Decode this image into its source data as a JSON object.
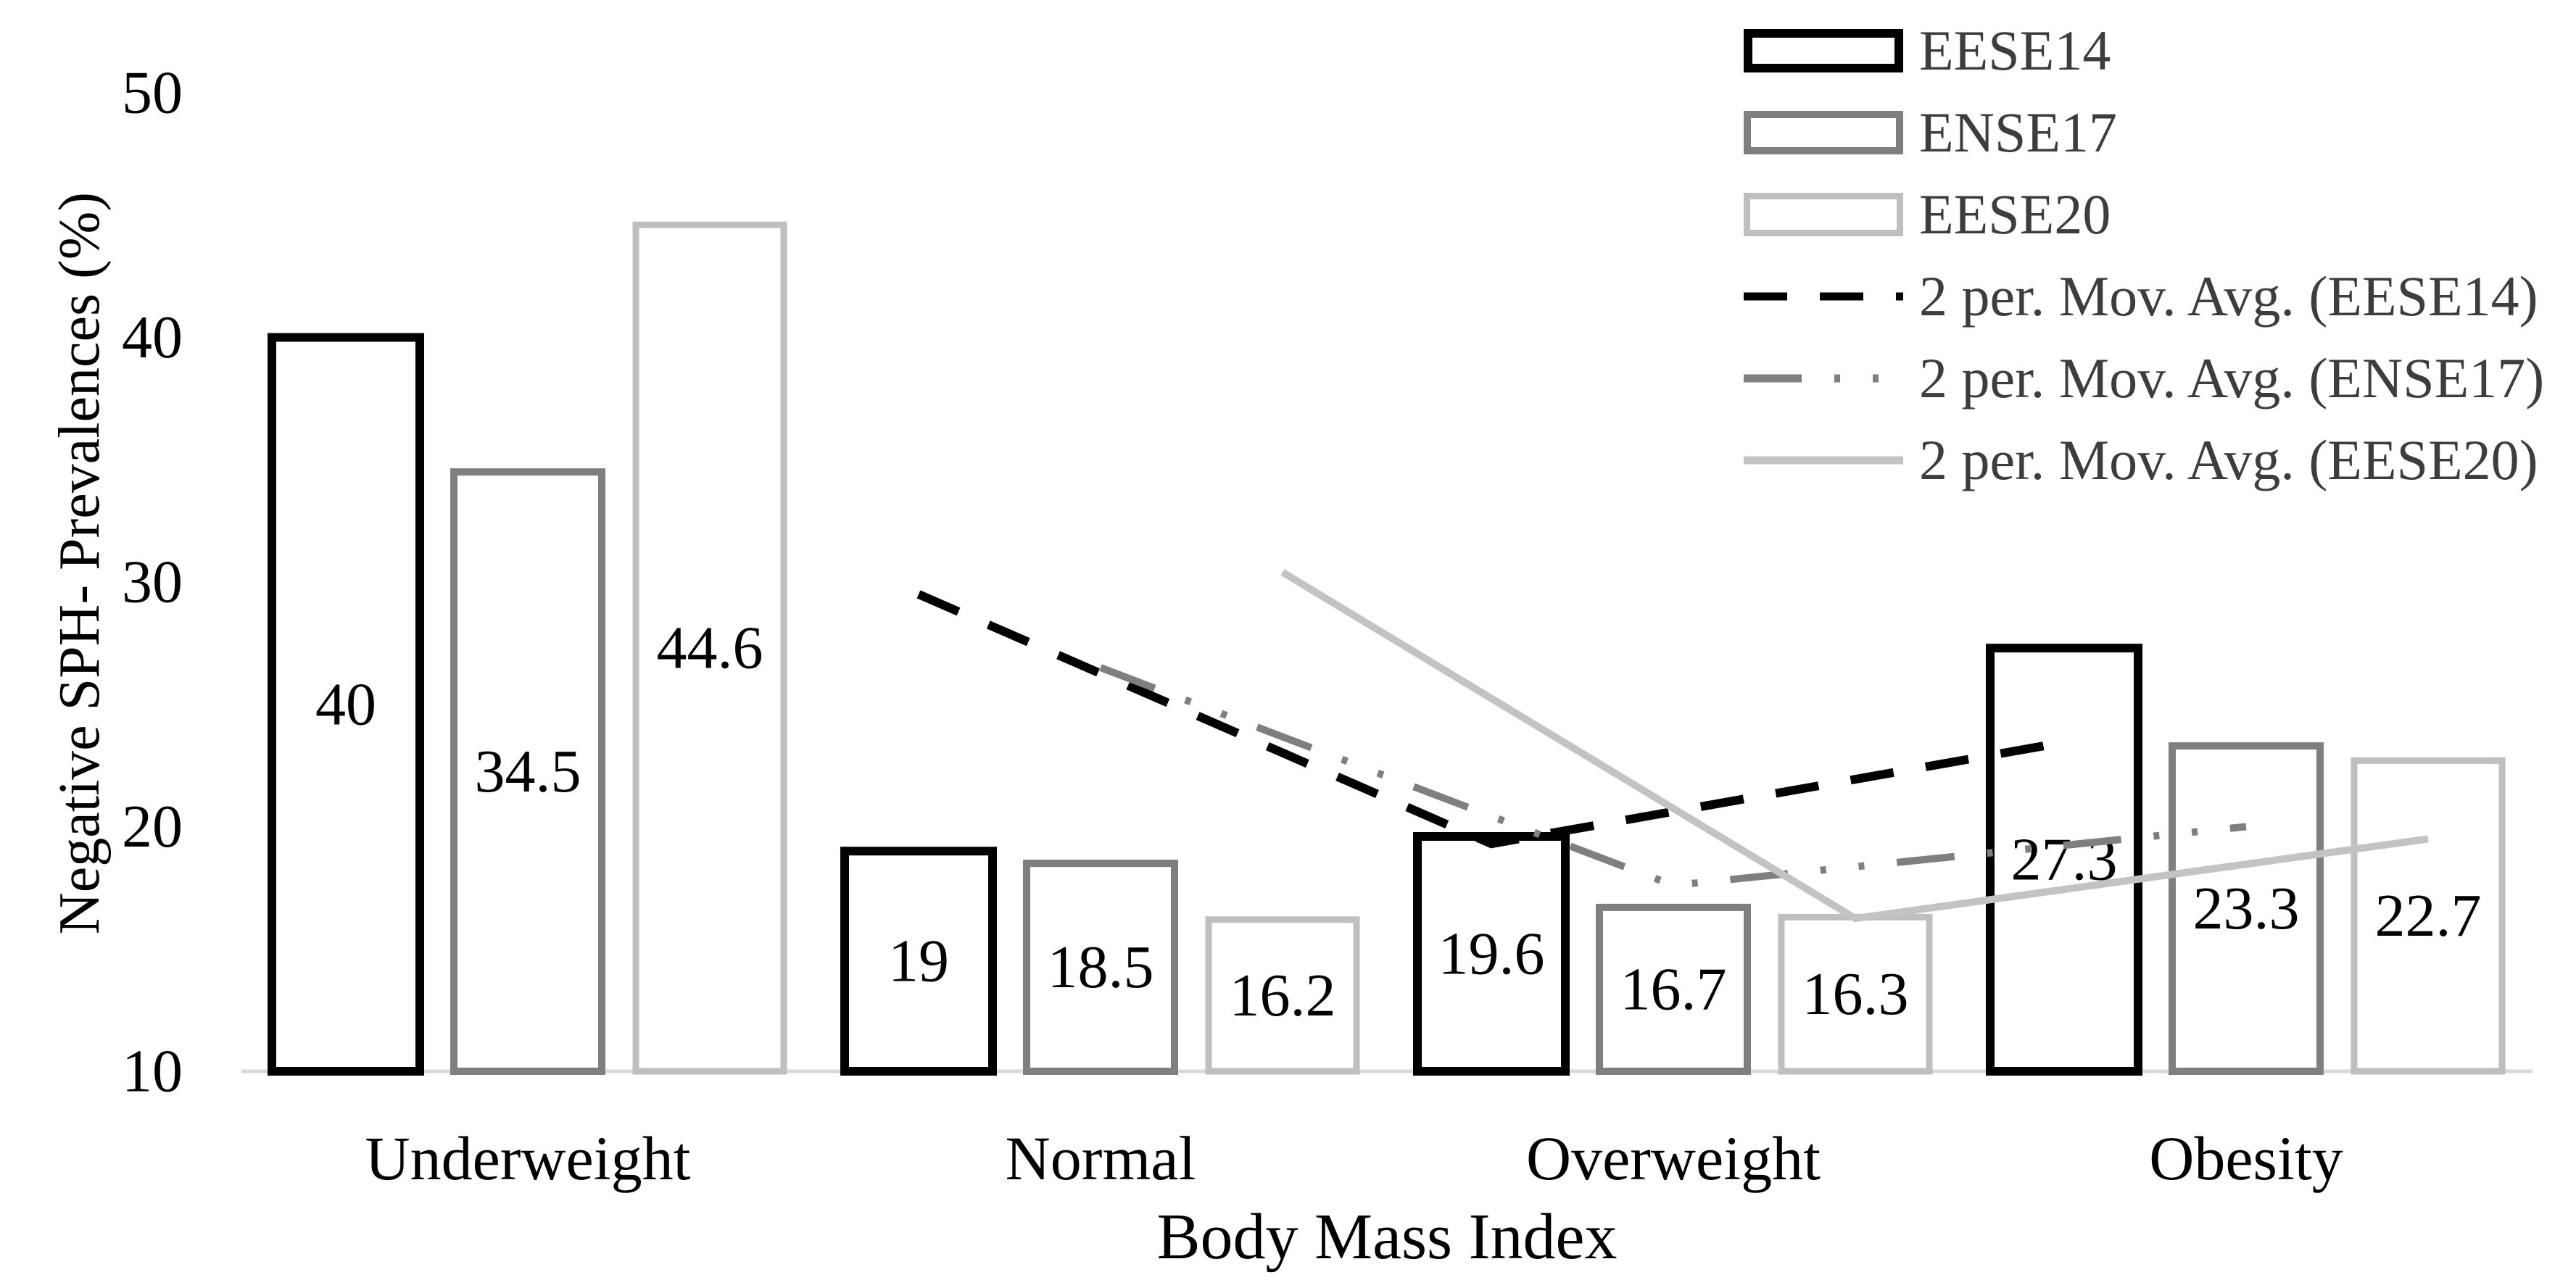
{
  "figure_type": "clustered-bar-chart-with-trendlines",
  "chart_data": {
    "type": "bar",
    "title": "",
    "categories": [
      "Underweight",
      "Normal",
      "Overweight",
      "Obesity"
    ],
    "series": [
      {
        "name": "EESE14",
        "values": [
          40,
          19,
          19.6,
          27.3
        ],
        "outline_color": "#000000",
        "fill": "#ffffff"
      },
      {
        "name": "ENSE17",
        "values": [
          34.5,
          18.5,
          16.7,
          23.3
        ],
        "outline_color": "#7f7f7f",
        "fill": "#ffffff"
      },
      {
        "name": "EESE20",
        "values": [
          44.6,
          16.2,
          16.3,
          22.7
        ],
        "outline_color": "#bfbfbf",
        "fill": "#ffffff"
      }
    ],
    "data_labels": {
      "EESE14": [
        "40",
        "19",
        "19.6",
        "27.3"
      ],
      "ENSE17": [
        "34.5",
        "18.5",
        "16.7",
        "23.3"
      ],
      "EESE20": [
        "44.6",
        "16.2",
        "16.3",
        "22.7"
      ]
    },
    "trendlines": [
      {
        "name": "2 per. Mov. Avg. (EESE14)",
        "series": "EESE14",
        "style": "dash",
        "color": "#000000",
        "values": [
          null,
          29.5,
          19.3,
          23.45
        ]
      },
      {
        "name": "2 per. Mov. Avg. (ENSE17)",
        "series": "ENSE17",
        "style": "long-dash-dot-dot",
        "color": "#7f7f7f",
        "values": [
          null,
          26.5,
          17.6,
          20
        ]
      },
      {
        "name": "2 per. Mov. Avg. (EESE20)",
        "series": "EESE20",
        "style": "solid",
        "color": "#c3c3c3",
        "values": [
          null,
          30.4,
          16.25,
          19.5
        ]
      }
    ],
    "xlabel": "Body Mass Index",
    "ylabel": "Negative SPH- Prevalences (%)",
    "ylim": [
      10,
      50
    ],
    "yticks": [
      10,
      20,
      30,
      40,
      50
    ],
    "grid": false,
    "legend_position": "top-right",
    "axis_color": "#d9d9d9",
    "text_color": "#000000",
    "legend_text_color": "#3d3d3d"
  },
  "legend": {
    "items": [
      {
        "label": "EESE14",
        "type": "bar",
        "color": "#000000"
      },
      {
        "label": "ENSE17",
        "type": "bar",
        "color": "#7f7f7f"
      },
      {
        "label": "EESE20",
        "type": "bar",
        "color": "#bfbfbf"
      },
      {
        "label": "2 per. Mov. Avg. (EESE14)",
        "type": "line",
        "color": "#000000",
        "style": "dash"
      },
      {
        "label": "2 per. Mov. Avg. (ENSE17)",
        "type": "line",
        "color": "#7f7f7f",
        "style": "long-dash-dot-dot"
      },
      {
        "label": "2 per. Mov. Avg. (EESE20)",
        "type": "line",
        "color": "#c3c3c3",
        "style": "solid"
      }
    ]
  }
}
